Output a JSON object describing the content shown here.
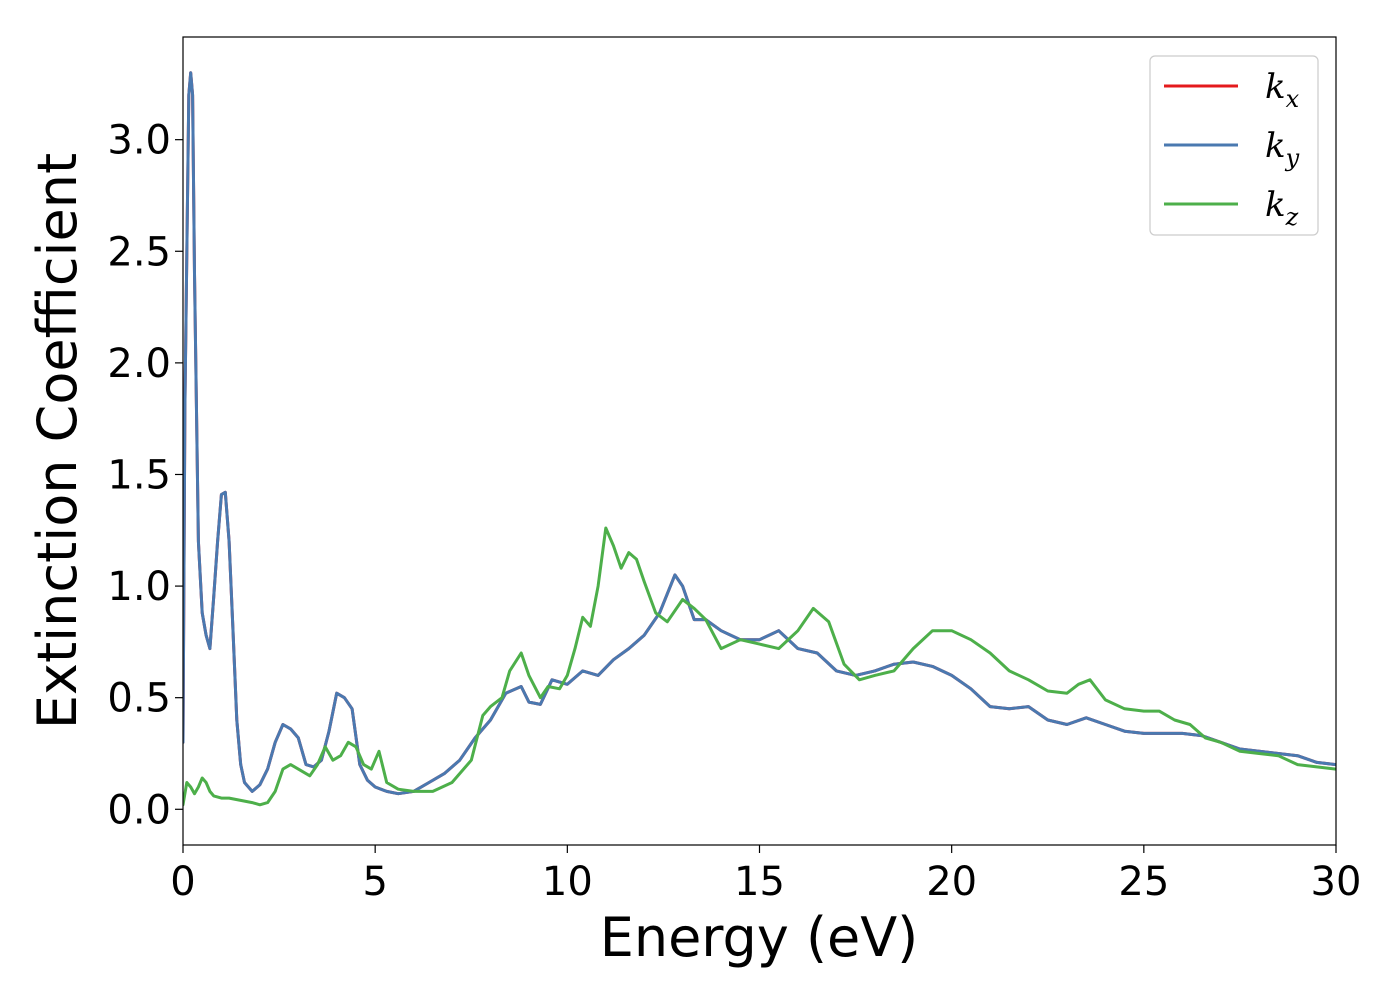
{
  "chart_data": {
    "type": "line",
    "title": "",
    "xlabel": "Energy (eV)",
    "ylabel": "Extinction Coefficient",
    "xlim": [
      0,
      30
    ],
    "ylim": [
      -0.16,
      3.46
    ],
    "xticks": [
      "0",
      "5",
      "10",
      "15",
      "20",
      "25",
      "30"
    ],
    "yticks": [
      "0.0",
      "0.5",
      "1.0",
      "1.5",
      "2.0",
      "2.5",
      "3.0"
    ],
    "grid": false,
    "legend_position": "top-right",
    "series": [
      {
        "name": "k_x",
        "legend_base": "k",
        "legend_sub": "x",
        "color": "#e41a1c",
        "x": [
          0.0,
          0.05,
          0.15,
          0.2,
          0.25,
          0.3,
          0.4,
          0.5,
          0.6,
          0.7,
          0.8,
          0.9,
          1.0,
          1.1,
          1.2,
          1.3,
          1.4,
          1.5,
          1.6,
          1.8,
          2.0,
          2.2,
          2.4,
          2.6,
          2.8,
          3.0,
          3.2,
          3.4,
          3.6,
          3.8,
          4.0,
          4.2,
          4.4,
          4.6,
          4.8,
          5.0,
          5.3,
          5.6,
          6.0,
          6.4,
          6.8,
          7.2,
          7.6,
          8.0,
          8.4,
          8.8,
          9.0,
          9.3,
          9.6,
          10.0,
          10.4,
          10.8,
          11.2,
          11.6,
          12.0,
          12.4,
          12.8,
          13.0,
          13.3,
          13.6,
          14.0,
          14.5,
          15.0,
          15.5,
          16.0,
          16.5,
          17.0,
          17.5,
          18.0,
          18.5,
          19.0,
          19.5,
          20.0,
          20.5,
          21.0,
          21.5,
          22.0,
          22.5,
          23.0,
          23.5,
          24.0,
          24.5,
          25.0,
          25.5,
          26.0,
          26.5,
          27.0,
          27.5,
          28.0,
          28.5,
          29.0,
          29.5,
          30.0
        ],
        "values": [
          0.3,
          1.8,
          3.2,
          3.3,
          3.2,
          2.4,
          1.2,
          0.88,
          0.78,
          0.72,
          0.95,
          1.2,
          1.41,
          1.42,
          1.2,
          0.8,
          0.4,
          0.2,
          0.12,
          0.08,
          0.11,
          0.18,
          0.3,
          0.38,
          0.36,
          0.32,
          0.2,
          0.19,
          0.22,
          0.35,
          0.52,
          0.5,
          0.45,
          0.2,
          0.13,
          0.1,
          0.08,
          0.07,
          0.08,
          0.12,
          0.16,
          0.22,
          0.32,
          0.4,
          0.52,
          0.55,
          0.48,
          0.47,
          0.58,
          0.56,
          0.62,
          0.6,
          0.67,
          0.72,
          0.78,
          0.88,
          1.05,
          1.0,
          0.85,
          0.85,
          0.8,
          0.76,
          0.76,
          0.8,
          0.72,
          0.7,
          0.62,
          0.6,
          0.62,
          0.65,
          0.66,
          0.64,
          0.6,
          0.54,
          0.46,
          0.45,
          0.46,
          0.4,
          0.38,
          0.41,
          0.38,
          0.35,
          0.34,
          0.34,
          0.34,
          0.33,
          0.3,
          0.27,
          0.26,
          0.25,
          0.24,
          0.21,
          0.2
        ]
      },
      {
        "name": "k_y",
        "legend_base": "k",
        "legend_sub": "y",
        "color": "#4a79b0",
        "x": [
          0.0,
          0.05,
          0.15,
          0.2,
          0.25,
          0.3,
          0.4,
          0.5,
          0.6,
          0.7,
          0.8,
          0.9,
          1.0,
          1.1,
          1.2,
          1.3,
          1.4,
          1.5,
          1.6,
          1.8,
          2.0,
          2.2,
          2.4,
          2.6,
          2.8,
          3.0,
          3.2,
          3.4,
          3.6,
          3.8,
          4.0,
          4.2,
          4.4,
          4.6,
          4.8,
          5.0,
          5.3,
          5.6,
          6.0,
          6.4,
          6.8,
          7.2,
          7.6,
          8.0,
          8.4,
          8.8,
          9.0,
          9.3,
          9.6,
          10.0,
          10.4,
          10.8,
          11.2,
          11.6,
          12.0,
          12.4,
          12.8,
          13.0,
          13.3,
          13.6,
          14.0,
          14.5,
          15.0,
          15.5,
          16.0,
          16.5,
          17.0,
          17.5,
          18.0,
          18.5,
          19.0,
          19.5,
          20.0,
          20.5,
          21.0,
          21.5,
          22.0,
          22.5,
          23.0,
          23.5,
          24.0,
          24.5,
          25.0,
          25.5,
          26.0,
          26.5,
          27.0,
          27.5,
          28.0,
          28.5,
          29.0,
          29.5,
          30.0
        ],
        "values": [
          0.3,
          1.8,
          3.2,
          3.3,
          3.2,
          2.4,
          1.2,
          0.88,
          0.78,
          0.72,
          0.95,
          1.2,
          1.41,
          1.42,
          1.2,
          0.8,
          0.4,
          0.2,
          0.12,
          0.08,
          0.11,
          0.18,
          0.3,
          0.38,
          0.36,
          0.32,
          0.2,
          0.19,
          0.22,
          0.35,
          0.52,
          0.5,
          0.45,
          0.2,
          0.13,
          0.1,
          0.08,
          0.07,
          0.08,
          0.12,
          0.16,
          0.22,
          0.32,
          0.4,
          0.52,
          0.55,
          0.48,
          0.47,
          0.58,
          0.56,
          0.62,
          0.6,
          0.67,
          0.72,
          0.78,
          0.88,
          1.05,
          1.0,
          0.85,
          0.85,
          0.8,
          0.76,
          0.76,
          0.8,
          0.72,
          0.7,
          0.62,
          0.6,
          0.62,
          0.65,
          0.66,
          0.64,
          0.6,
          0.54,
          0.46,
          0.45,
          0.46,
          0.4,
          0.38,
          0.41,
          0.38,
          0.35,
          0.34,
          0.34,
          0.34,
          0.33,
          0.3,
          0.27,
          0.26,
          0.25,
          0.24,
          0.21,
          0.2
        ]
      },
      {
        "name": "k_z",
        "legend_base": "k",
        "legend_sub": "z",
        "color": "#4daf4a",
        "x": [
          0.0,
          0.1,
          0.2,
          0.3,
          0.4,
          0.5,
          0.6,
          0.7,
          0.8,
          1.0,
          1.2,
          1.5,
          1.8,
          2.0,
          2.2,
          2.4,
          2.6,
          2.8,
          3.0,
          3.3,
          3.5,
          3.7,
          3.9,
          4.1,
          4.3,
          4.5,
          4.7,
          4.9,
          5.1,
          5.3,
          5.6,
          6.0,
          6.5,
          7.0,
          7.5,
          7.8,
          8.0,
          8.3,
          8.5,
          8.8,
          9.0,
          9.3,
          9.5,
          9.8,
          10.0,
          10.2,
          10.4,
          10.6,
          10.8,
          11.0,
          11.2,
          11.4,
          11.6,
          11.8,
          12.0,
          12.3,
          12.6,
          13.0,
          13.3,
          13.6,
          14.0,
          14.5,
          15.0,
          15.5,
          16.0,
          16.4,
          16.8,
          17.2,
          17.6,
          18.0,
          18.5,
          19.0,
          19.5,
          20.0,
          20.5,
          21.0,
          21.5,
          22.0,
          22.5,
          23.0,
          23.3,
          23.6,
          24.0,
          24.5,
          25.0,
          25.4,
          25.8,
          26.2,
          26.6,
          27.0,
          27.5,
          28.0,
          28.5,
          29.0,
          29.5,
          30.0
        ],
        "values": [
          0.02,
          0.12,
          0.1,
          0.07,
          0.1,
          0.14,
          0.12,
          0.08,
          0.06,
          0.05,
          0.05,
          0.04,
          0.03,
          0.02,
          0.03,
          0.08,
          0.18,
          0.2,
          0.18,
          0.15,
          0.2,
          0.28,
          0.22,
          0.24,
          0.3,
          0.28,
          0.2,
          0.18,
          0.26,
          0.12,
          0.09,
          0.08,
          0.08,
          0.12,
          0.22,
          0.42,
          0.46,
          0.5,
          0.62,
          0.7,
          0.6,
          0.5,
          0.55,
          0.54,
          0.6,
          0.72,
          0.86,
          0.82,
          1.0,
          1.26,
          1.18,
          1.08,
          1.15,
          1.12,
          1.02,
          0.88,
          0.84,
          0.94,
          0.9,
          0.85,
          0.72,
          0.76,
          0.74,
          0.72,
          0.8,
          0.9,
          0.84,
          0.65,
          0.58,
          0.6,
          0.62,
          0.72,
          0.8,
          0.8,
          0.76,
          0.7,
          0.62,
          0.58,
          0.53,
          0.52,
          0.56,
          0.58,
          0.49,
          0.45,
          0.44,
          0.44,
          0.4,
          0.38,
          0.32,
          0.3,
          0.26,
          0.25,
          0.24,
          0.2,
          0.19,
          0.18
        ]
      }
    ]
  }
}
